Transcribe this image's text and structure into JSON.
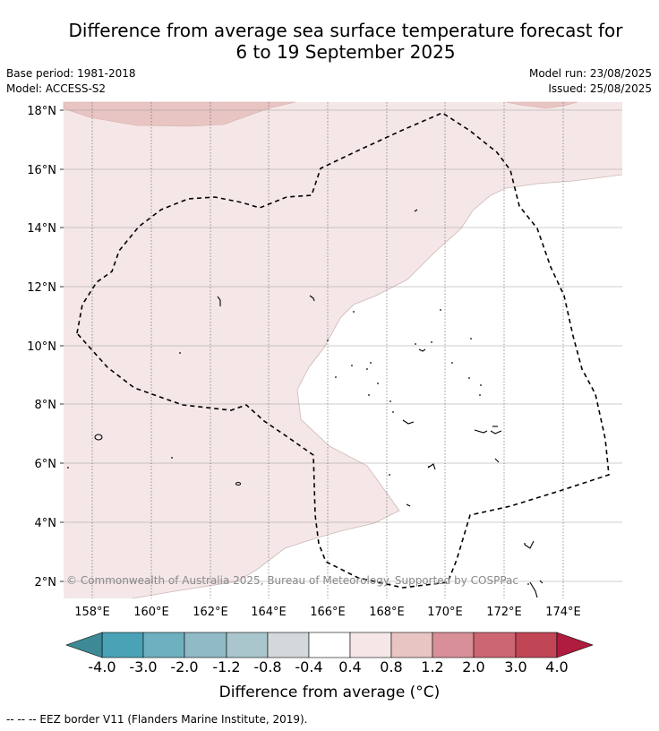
{
  "title_line1": "Difference from average sea surface temperature forecast for",
  "title_line2": "6 to 19 September 2025",
  "base_period": "Base period: 1981-2018",
  "model": "Model: ACCESS-S2",
  "model_run": "Model run: 23/08/2025",
  "issued": "Issued: 25/08/2025",
  "copyright": "© Commonwealth of Australia 2025, Bureau of Meteorology. Supported by COSPPac",
  "footnote": "-- -- -- EEZ border V11 (Flanders Marine Institute, 2019).",
  "lat_labels": [
    "18°N",
    "16°N",
    "14°N",
    "12°N",
    "10°N",
    "8°N",
    "6°N",
    "4°N",
    "2°N"
  ],
  "lon_labels": [
    "158°E",
    "160°E",
    "162°E",
    "164°E",
    "166°E",
    "168°E",
    "170°E",
    "172°E",
    "174°E"
  ],
  "colorbar": {
    "title": "Difference from average (°C)",
    "labels": [
      "-4.0",
      "-3.0",
      "-2.0",
      "-1.2",
      "-0.8",
      "-0.4",
      "0.4",
      "0.8",
      "1.2",
      "2.0",
      "3.0",
      "4.0"
    ],
    "colors": [
      "#4aa2b6",
      "#6fb0c0",
      "#8fbac6",
      "#a9c6cc",
      "#d3d8da",
      "#ffffff",
      "#f5e7e7",
      "#e8c4c2",
      "#d98f97",
      "#cc6672",
      "#c04656"
    ],
    "low_extend_color": "#3d8a96",
    "high_extend_color": "#b01c3e"
  },
  "map_colors": {
    "anomaly_0_4_to_0_8": "#f5e7e7",
    "anomaly_0_8_to_1_2": "#e8c4c2"
  }
}
